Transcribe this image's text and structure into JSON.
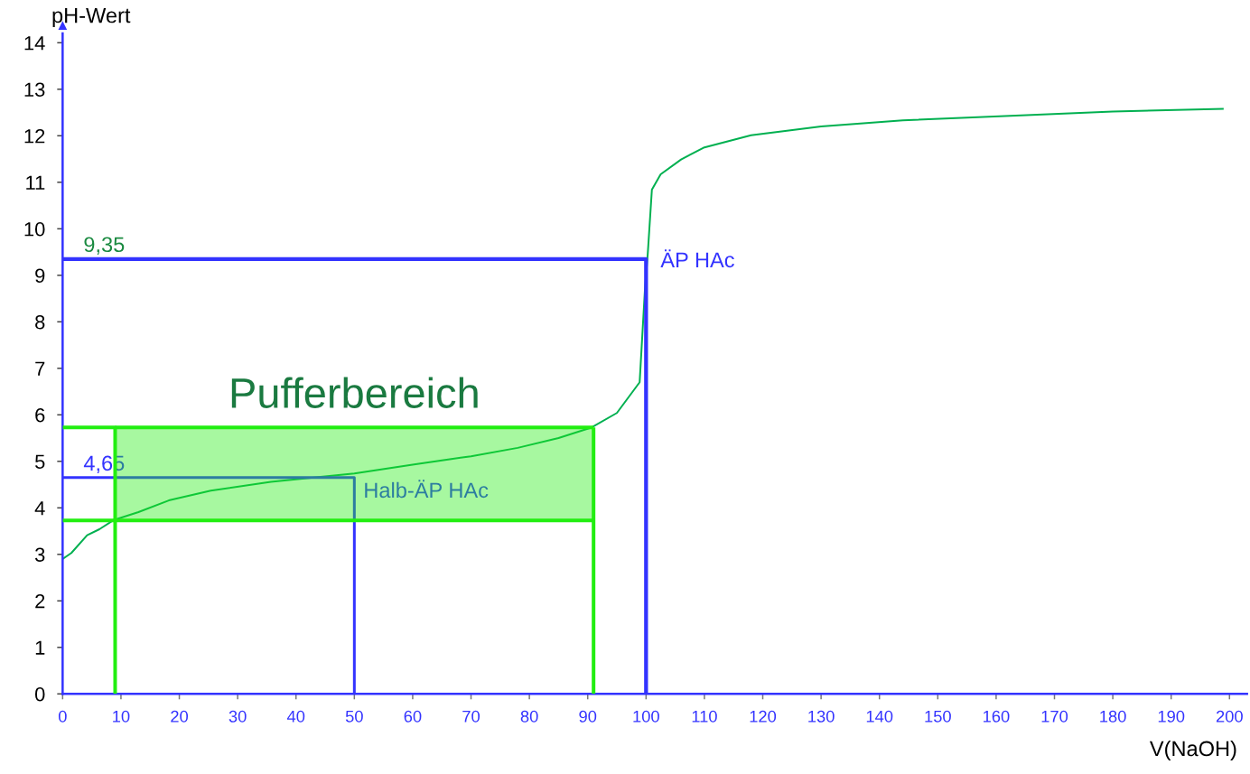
{
  "chart_data": {
    "type": "line",
    "xlabel": "V(NaOH)",
    "ylabel": "pH-Wert",
    "xlim": [
      0,
      203
    ],
    "ylim": [
      0,
      14.2
    ],
    "xticks": [
      0,
      10,
      20,
      30,
      40,
      50,
      60,
      70,
      80,
      90,
      100,
      110,
      120,
      130,
      140,
      150,
      160,
      170,
      180,
      190,
      200
    ],
    "yticks": [
      0,
      1,
      2,
      3,
      4,
      5,
      6,
      7,
      8,
      9,
      10,
      11,
      12,
      13,
      14
    ],
    "series": [
      {
        "color": "#00b050",
        "x": [
          0,
          1.5,
          4.2,
          6.3,
          8.8,
          13,
          18.2,
          25.4,
          35.7,
          50,
          60.5,
          70,
          78,
          85,
          90.7,
          95,
          98.9,
          99.8,
          100.3,
          101,
          102.5,
          106,
          110,
          118,
          130,
          144,
          155,
          180,
          199
        ],
        "values": [
          2.9,
          3.03,
          3.41,
          3.54,
          3.74,
          3.91,
          4.16,
          4.37,
          4.56,
          4.74,
          4.94,
          5.11,
          5.29,
          5.5,
          5.73,
          6.04,
          6.7,
          8.68,
          9.48,
          10.84,
          11.17,
          11.49,
          11.75,
          12.01,
          12.2,
          12.33,
          12.39,
          12.52,
          12.58
        ]
      },
      {
        "name": "Pufferbereich",
        "color": "#22ee11",
        "x": [
          9,
          91
        ],
        "values": [
          5.73,
          5.73
        ],
        "lower": [
          3.73,
          3.73
        ],
        "upper": [
          5.73,
          5.73
        ]
      },
      {
        "color": "#22ee11",
        "x": [
          0,
          9,
          9
        ],
        "values": [
          5.73,
          5.73,
          0
        ]
      },
      {
        "color": "#22ee11",
        "x": [
          91,
          91
        ],
        "values": [
          5.73,
          0
        ]
      },
      {
        "color": "#22ee11",
        "x": [
          0,
          91
        ],
        "values": [
          3.73,
          3.73
        ]
      },
      {
        "color": "#3333ff",
        "x": [
          0,
          100,
          100
        ],
        "values": [
          9.35,
          9.35,
          0
        ]
      },
      {
        "color": "#3333ff",
        "x": [
          0,
          50,
          50
        ],
        "values": [
          4.65,
          4.65,
          0
        ]
      }
    ],
    "annotations": [
      {
        "text": "9,35",
        "x": 0,
        "y": 9.35
      },
      {
        "text": "4,65",
        "x": 0,
        "y": 4.65
      },
      {
        "text": "ÄP HAc",
        "x": 100,
        "y": 9.35
      },
      {
        "text": "Halb-ÄP HAc",
        "x": 50,
        "y": 4.65
      }
    ]
  }
}
